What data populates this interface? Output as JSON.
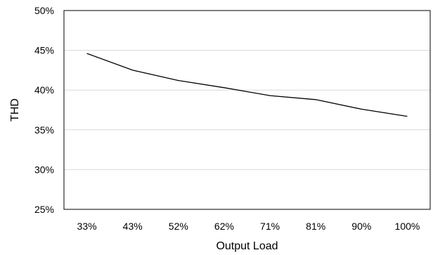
{
  "chart_data": {
    "type": "line",
    "categories": [
      "33%",
      "43%",
      "52%",
      "62%",
      "71%",
      "81%",
      "90%",
      "100%"
    ],
    "series": [
      {
        "values": [
          44.6,
          42.5,
          41.2,
          40.3,
          39.3,
          38.8,
          37.6,
          36.7
        ]
      }
    ],
    "ylabel": "THD",
    "xlabel": "Output Load",
    "ylim": [
      25,
      50
    ],
    "yticks": [
      "25%",
      "30%",
      "35%",
      "40%",
      "45%",
      "50%"
    ],
    "grid": true,
    "line_color": "#000000",
    "grid_color": "#d9d9d9"
  }
}
